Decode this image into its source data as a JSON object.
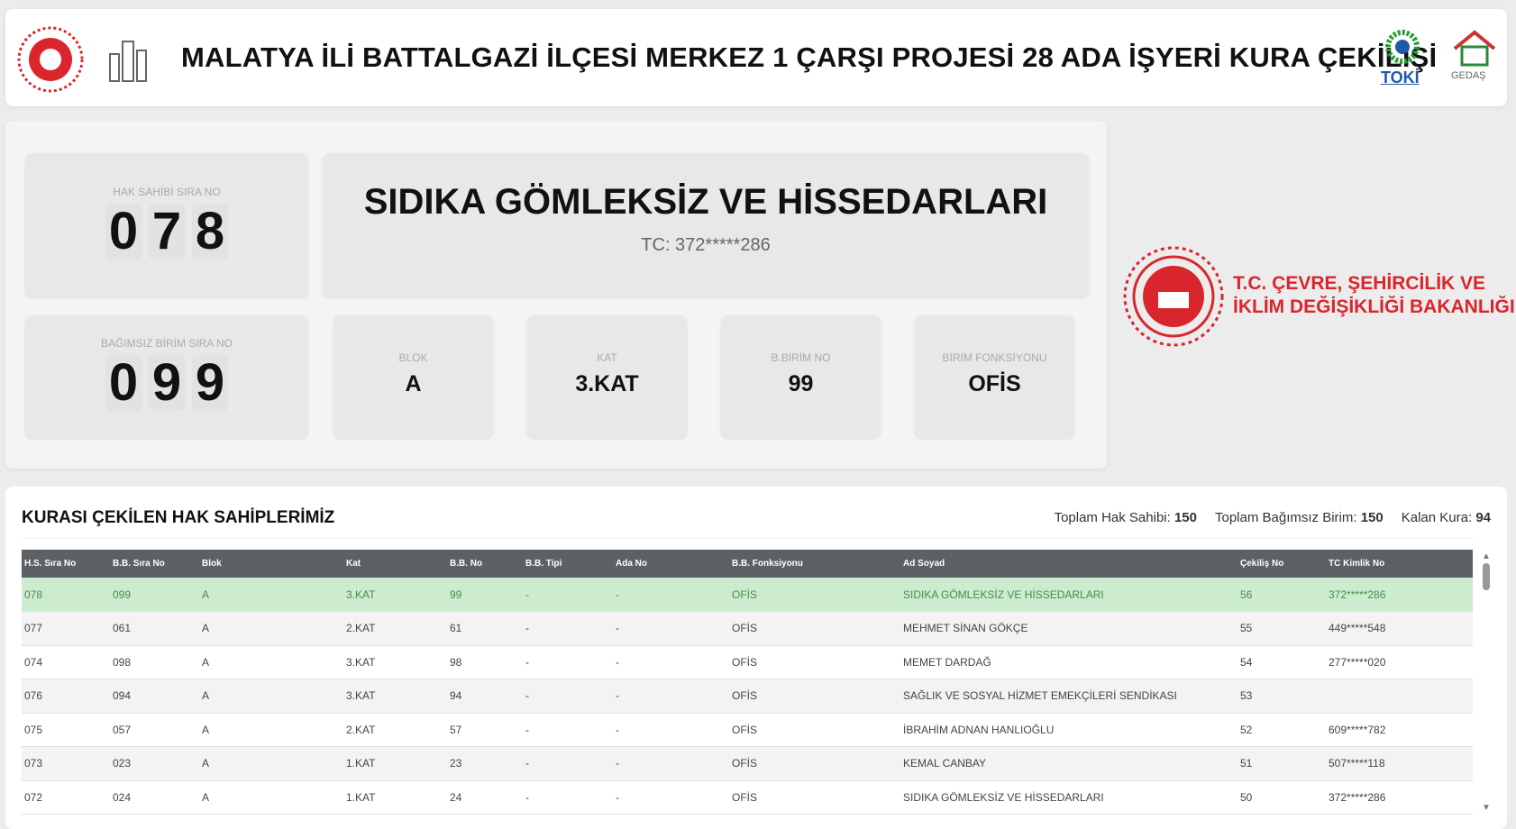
{
  "header": {
    "title": "MALATYA İLİ BATTALGAZİ İLÇESİ MERKEZ 1 ÇARŞI PROJESİ 28 ADA İŞYERİ KURA ÇEKİLİŞİ",
    "toki": "TOKİ",
    "gedas": "GEDAŞ"
  },
  "current": {
    "hak_sahibi_label": "HAK SAHİBİ SIRA NO",
    "hak_sahibi_digits": [
      "0",
      "7",
      "8"
    ],
    "name": "SIDIKA GÖMLEKSİZ VE HİSSEDARLARI",
    "tc": "TC: 372*****286",
    "birim_label": "BAĞIMSIZ BİRİM SIRA NO",
    "birim_digits": [
      "0",
      "9",
      "9"
    ],
    "blok_label": "BLOK",
    "blok": "A",
    "kat_label": "KAT",
    "kat": "3.KAT",
    "bbno_label": "B.BİRİM NO",
    "bbno": "99",
    "fonk_label": "BİRİM FONKSİYONU",
    "fonk": "OFİS"
  },
  "ministry": {
    "line1": "T.C. ÇEVRE, ŞEHİRCİLİK VE",
    "line2": "İKLİM DEĞİŞİKLİĞİ BAKANLIĞI"
  },
  "table_section": {
    "title": "KURASI ÇEKİLEN HAK SAHİPLERİMİZ",
    "total_label": "Toplam Hak Sahibi:",
    "total": "150",
    "units_label": "Toplam Bağımsız Birim:",
    "units": "150",
    "remaining_label": "Kalan Kura:",
    "remaining": "94"
  },
  "table": {
    "columns": [
      "H.S. Sıra No",
      "B.B. Sıra No",
      "Blok",
      "Kat",
      "B.B. No",
      "B.B. Tipi",
      "Ada No",
      "B.B. Fonksiyonu",
      "Ad Soyad",
      "Çekiliş No",
      "TC Kimlik No"
    ],
    "rows": [
      [
        "078",
        "099",
        "A",
        "3.KAT",
        "99",
        "-",
        "-",
        "OFİS",
        "SIDIKA GÖMLEKSİZ VE HİSSEDARLARI",
        "56",
        "372*****286"
      ],
      [
        "077",
        "061",
        "A",
        "2.KAT",
        "61",
        "-",
        "-",
        "OFİS",
        "MEHMET SİNAN GÖKÇE",
        "55",
        "449*****548"
      ],
      [
        "074",
        "098",
        "A",
        "3.KAT",
        "98",
        "-",
        "-",
        "OFİS",
        "MEMET DARDAĞ",
        "54",
        "277*****020"
      ],
      [
        "076",
        "094",
        "A",
        "3.KAT",
        "94",
        "-",
        "-",
        "OFİS",
        "SAĞLIK VE SOSYAL HİZMET EMEKÇİLERİ SENDİKASI",
        "53",
        ""
      ],
      [
        "075",
        "057",
        "A",
        "2.KAT",
        "57",
        "-",
        "-",
        "OFİS",
        "İBRAHİM ADNAN HANLIOĞLU",
        "52",
        "609*****782"
      ],
      [
        "073",
        "023",
        "A",
        "1.KAT",
        "23",
        "-",
        "-",
        "OFİS",
        "KEMAL CANBAY",
        "51",
        "507*****118"
      ],
      [
        "072",
        "024",
        "A",
        "1.KAT",
        "24",
        "-",
        "-",
        "OFİS",
        "SIDIKA GÖMLEKSİZ VE HİSSEDARLARI",
        "50",
        "372*****286"
      ]
    ]
  },
  "colors": {
    "highlight": "#cdeccf",
    "header": "#5c6166",
    "logo_red": "#d9262c",
    "toki_blue": "#1e5aa8"
  }
}
